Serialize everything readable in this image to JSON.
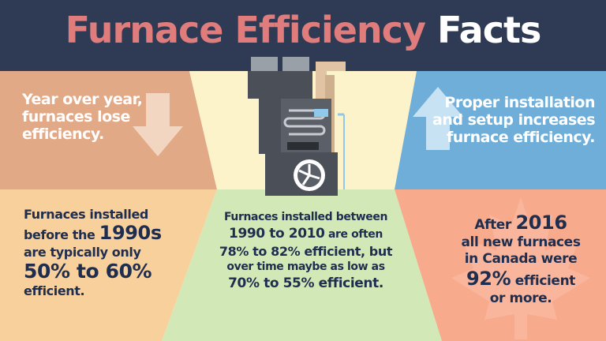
{
  "header": {
    "title_part1": "Furnace Efficiency",
    "title_part2": "Facts"
  },
  "top_left": {
    "lines": [
      "Year over year,",
      "furnaces lose",
      "efficiency."
    ]
  },
  "top_right": {
    "lines": [
      "Proper installation",
      "and setup increases",
      "furnace efficiency."
    ]
  },
  "bottom_left": {
    "lines": [
      "Furnaces installed",
      "before the",
      "1990s",
      "are typically only",
      "50% to 60%",
      "efficient."
    ]
  },
  "bottom_middle": {
    "lines": [
      "Furnaces installed between",
      "1990 to 2010",
      "are often",
      "78% to 82% efficient, but",
      "over time maybe as low as",
      "70% to 55% efficient."
    ]
  },
  "bottom_right": {
    "lines": [
      "After",
      "2016",
      "all new furnaces",
      "in Canada were",
      "92%",
      "efficient",
      "or more."
    ]
  }
}
